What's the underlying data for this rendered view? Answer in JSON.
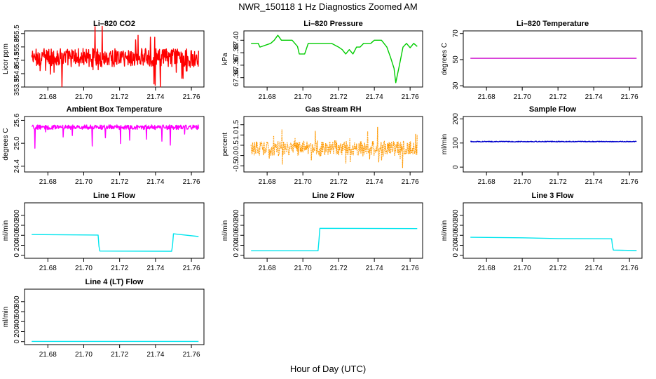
{
  "figure": {
    "title": "NWR_150118  1 Hz Diagnostics Zoomed AM",
    "xlabel": "Hour of Day (UTC)"
  },
  "chart_data": [
    {
      "type": "line",
      "title": "Li–820 CO2",
      "xlabel": "",
      "ylabel": "Licor ppm",
      "color": "#ff0000",
      "xlim": [
        21.667,
        21.767
      ],
      "ylim": [
        353.5,
        355.6
      ],
      "xticks": [
        21.68,
        21.7,
        21.72,
        21.74,
        21.76
      ],
      "xtick_labels": [
        "21.68",
        "21.70",
        "21.72",
        "21.74",
        "21.76"
      ],
      "yticks": [
        353.5,
        354.0,
        354.5,
        355.0,
        355.5
      ],
      "ytick_labels": [
        "353.5",
        "354.0",
        "354.5",
        "355.0",
        "355.5"
      ],
      "series": [
        {
          "name": "CO2",
          "noise": {
            "kind": "noise",
            "base": 354.6,
            "amp": 0.35,
            "spike": 0.9,
            "t0": 21.671,
            "t1": 21.764
          }
        }
      ]
    },
    {
      "type": "line",
      "title": "Li–820 Pressure",
      "xlabel": "",
      "ylabel": "kPa",
      "color": "#00cc00",
      "xlim": [
        21.667,
        21.767
      ],
      "ylim": [
        67.325,
        67.415
      ],
      "xticks": [
        21.68,
        21.7,
        21.72,
        21.74,
        21.76
      ],
      "xtick_labels": [
        "21.68",
        "21.70",
        "21.72",
        "21.74",
        "21.76"
      ],
      "yticks": [
        67.34,
        67.36,
        67.38,
        67.4
      ],
      "ytick_labels": [
        "67.34",
        "67.36",
        "67.38",
        "67.40"
      ],
      "series": [
        {
          "name": "pressure",
          "x": [
            21.671,
            21.675,
            21.676,
            21.682,
            21.684,
            21.686,
            21.688,
            21.694,
            21.697,
            21.698,
            21.701,
            21.703,
            21.706,
            21.71,
            21.712,
            21.716,
            21.72,
            21.722,
            21.724,
            21.726,
            21.728,
            21.73,
            21.732,
            21.734,
            21.738,
            21.74,
            21.744,
            21.747,
            21.749,
            21.751,
            21.752,
            21.754,
            21.756,
            21.758,
            21.76,
            21.762,
            21.764
          ],
          "y": [
            67.395,
            67.395,
            67.389,
            67.395,
            67.4,
            67.408,
            67.4,
            67.4,
            67.39,
            67.378,
            67.378,
            67.395,
            67.395,
            67.395,
            67.395,
            67.395,
            67.389,
            67.385,
            67.378,
            67.385,
            67.378,
            67.389,
            67.389,
            67.395,
            67.395,
            67.4,
            67.4,
            67.389,
            67.373,
            67.355,
            67.332,
            67.36,
            67.389,
            67.395,
            67.388,
            67.395,
            67.39
          ]
        }
      ]
    },
    {
      "type": "line",
      "title": "Li–820 Temperature",
      "xlabel": "",
      "ylabel": "degrees C",
      "color": "#cc00cc",
      "xlim": [
        21.667,
        21.767
      ],
      "ylim": [
        29,
        72
      ],
      "xticks": [
        21.68,
        21.7,
        21.72,
        21.74,
        21.76
      ],
      "xtick_labels": [
        "21.68",
        "21.70",
        "21.72",
        "21.74",
        "21.76"
      ],
      "yticks": [
        30,
        50,
        70
      ],
      "ytick_labels": [
        "30",
        "50",
        "70"
      ],
      "series": [
        {
          "name": "temp",
          "x": [
            21.671,
            21.764
          ],
          "y": [
            51.0,
            51.0
          ]
        }
      ]
    },
    {
      "type": "line",
      "title": "Ambient Box Temperature",
      "xlabel": "",
      "ylabel": "degrees C",
      "color": "#ff00ff",
      "xlim": [
        21.667,
        21.767
      ],
      "ylim": [
        24.25,
        25.7
      ],
      "xticks": [
        21.68,
        21.7,
        21.72,
        21.74,
        21.76
      ],
      "xtick_labels": [
        "21.68",
        "21.70",
        "21.72",
        "21.74",
        "21.76"
      ],
      "yticks": [
        24.4,
        25.0,
        25.6
      ],
      "ytick_labels": [
        "24.4",
        "25.0",
        "25.6"
      ],
      "series": [
        {
          "name": "ambient",
          "noise": {
            "kind": "noise-down",
            "base": 25.42,
            "amp": 0.06,
            "spike": 0.55,
            "t0": 21.671,
            "t1": 21.764
          }
        }
      ]
    },
    {
      "type": "scatter",
      "title": "Gas Stream RH",
      "xlabel": "",
      "ylabel": "percent",
      "color": "#ff9900",
      "xlim": [
        21.667,
        21.767
      ],
      "ylim": [
        -0.8,
        1.9
      ],
      "xticks": [
        21.68,
        21.7,
        21.72,
        21.74,
        21.76
      ],
      "xtick_labels": [
        "21.68",
        "21.70",
        "21.72",
        "21.74",
        "21.76"
      ],
      "yticks": [
        -0.5,
        0.0,
        0.5,
        1.0,
        1.5
      ],
      "ytick_labels": [
        "-0.5",
        "0.0",
        "0.5",
        "1.0",
        "1.5"
      ],
      "series": [
        {
          "name": "rh",
          "noise": {
            "kind": "noise",
            "base": 0.35,
            "amp": 0.35,
            "spike": 0.9,
            "t0": 21.671,
            "t1": 21.764
          }
        }
      ]
    },
    {
      "type": "line",
      "title": "Sample Flow",
      "xlabel": "",
      "ylabel": "ml/min",
      "color": "#0000cc",
      "xlim": [
        21.667,
        21.767
      ],
      "ylim": [
        -20,
        210
      ],
      "xticks": [
        21.68,
        21.7,
        21.72,
        21.74,
        21.76
      ],
      "xtick_labels": [
        "21.68",
        "21.70",
        "21.72",
        "21.74",
        "21.76"
      ],
      "yticks": [
        0,
        100,
        200
      ],
      "ytick_labels": [
        "0",
        "100",
        "200"
      ],
      "series": [
        {
          "name": "sample",
          "noise": {
            "kind": "flat",
            "base": 106,
            "amp": 1.5,
            "spike": 0,
            "t0": 21.671,
            "t1": 21.764
          }
        }
      ]
    },
    {
      "type": "line",
      "title": "Line 1 Flow",
      "xlabel": "",
      "ylabel": "ml/min",
      "color": "#00e5ee",
      "xlim": [
        21.667,
        21.767
      ],
      "ylim": [
        -60,
        1050
      ],
      "xticks": [
        21.68,
        21.7,
        21.72,
        21.74,
        21.76
      ],
      "xtick_labels": [
        "21.68",
        "21.70",
        "21.72",
        "21.74",
        "21.76"
      ],
      "yticks": [
        0,
        200,
        400,
        600,
        800
      ],
      "ytick_labels": [
        "0",
        "200",
        "400",
        "600",
        "800"
      ],
      "series": [
        {
          "name": "line1",
          "x": [
            21.671,
            21.708,
            21.7085,
            21.709,
            21.749,
            21.7495,
            21.75,
            21.764
          ],
          "y": [
            415,
            405,
            180,
            85,
            80,
            200,
            430,
            375
          ]
        }
      ]
    },
    {
      "type": "line",
      "title": "Line 2 Flow",
      "xlabel": "",
      "ylabel": "ml/min",
      "color": "#00e5ee",
      "xlim": [
        21.667,
        21.767
      ],
      "ylim": [
        -60,
        1050
      ],
      "xticks": [
        21.68,
        21.7,
        21.72,
        21.74,
        21.76
      ],
      "xtick_labels": [
        "21.68",
        "21.70",
        "21.72",
        "21.74",
        "21.76"
      ],
      "yticks": [
        0,
        200,
        400,
        600,
        800
      ],
      "ytick_labels": [
        "0",
        "200",
        "400",
        "600",
        "800"
      ],
      "series": [
        {
          "name": "line2",
          "x": [
            21.671,
            21.7085,
            21.709,
            21.7095,
            21.764
          ],
          "y": [
            90,
            90,
            300,
            540,
            535
          ]
        }
      ]
    },
    {
      "type": "line",
      "title": "Line 3 Flow",
      "xlabel": "",
      "ylabel": "ml/min",
      "color": "#00e5ee",
      "xlim": [
        21.667,
        21.767
      ],
      "ylim": [
        -60,
        1050
      ],
      "xticks": [
        21.68,
        21.7,
        21.72,
        21.74,
        21.76
      ],
      "xtick_labels": [
        "21.68",
        "21.70",
        "21.72",
        "21.74",
        "21.76"
      ],
      "yticks": [
        0,
        200,
        400,
        600,
        800
      ],
      "ytick_labels": [
        "0",
        "200",
        "400",
        "600",
        "800"
      ],
      "series": [
        {
          "name": "line3",
          "x": [
            21.671,
            21.7,
            21.72,
            21.75,
            21.7505,
            21.751,
            21.764
          ],
          "y": [
            360,
            350,
            335,
            330,
            180,
            105,
            95
          ]
        }
      ]
    },
    {
      "type": "line",
      "title": "Line 4 (LT) Flow",
      "xlabel": "",
      "ylabel": "ml/min",
      "color": "#00e5ee",
      "xlim": [
        21.667,
        21.767
      ],
      "ylim": [
        -60,
        1050
      ],
      "xticks": [
        21.68,
        21.7,
        21.72,
        21.74,
        21.76
      ],
      "xtick_labels": [
        "21.68",
        "21.70",
        "21.72",
        "21.74",
        "21.76"
      ],
      "yticks": [
        0,
        200,
        400,
        600,
        800
      ],
      "ytick_labels": [
        "0",
        "200",
        "400",
        "600",
        "800"
      ],
      "series": [
        {
          "name": "line4",
          "x": [
            21.671,
            21.764
          ],
          "y": [
            5,
            5
          ]
        }
      ]
    }
  ]
}
